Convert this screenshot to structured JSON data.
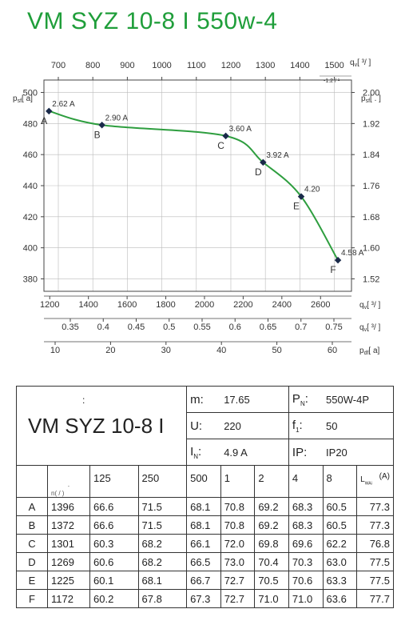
{
  "title": "VM SYZ 10-8 I 550w-4",
  "chart_data": {
    "type": "line",
    "curve_color": "#2e9e3f",
    "grid": true,
    "top_axis": {
      "label": "q",
      "sub": "v",
      "unit": "[ ³/ ]",
      "note": "-1.2 / ¹",
      "ticks": [
        700,
        800,
        900,
        1000,
        1100,
        1200,
        1300,
        1400,
        1500
      ]
    },
    "left_axis": {
      "label": "p",
      "sub": "sf",
      "unit": "[ a]",
      "ticks": [
        500,
        480,
        460,
        440,
        420,
        400,
        380
      ],
      "ylim": [
        372,
        508
      ]
    },
    "right_axis": {
      "label": "p",
      "sub": "sf",
      "unit": "[ . ]",
      "ticks": [
        "2.00",
        "1.92",
        "1.84",
        "1.76",
        "1.68",
        "1.60",
        "1.52"
      ]
    },
    "bottom_axes": [
      {
        "label": "q",
        "sub": "v",
        "unit": "[ ³/ ]",
        "ticks": [
          1200,
          1400,
          1600,
          1800,
          2000,
          2200,
          2400,
          2600
        ]
      },
      {
        "label": "q",
        "sub": "v",
        "unit": "[ ³/ ]",
        "ticks": [
          "0.35",
          "0.4",
          "0.45",
          "0.5",
          "0.55",
          "0.6",
          "0.65",
          "0.7",
          "0.75"
        ]
      },
      {
        "label": "p",
        "sub": "df",
        "unit": "[ a]",
        "ticks": [
          10,
          20,
          30,
          40,
          50,
          60
        ]
      }
    ],
    "points": [
      {
        "label": "A",
        "current": "2.62 A",
        "x": 1196,
        "y": 488
      },
      {
        "label": "B",
        "current": "2.90 A",
        "x": 1470,
        "y": 479
      },
      {
        "label": "C",
        "current": "3.60 A",
        "x": 2110,
        "y": 472
      },
      {
        "label": "D",
        "current": "3.92 A",
        "x": 2303,
        "y": 455
      },
      {
        "label": "E",
        "current": "4.20",
        "x": 2500,
        "y": 433
      },
      {
        "label": "F",
        "current": "4.58 A",
        "x": 2690,
        "y": 392
      }
    ],
    "xlim": [
      1170,
      2760
    ]
  },
  "specs": {
    "model_prefix": ":",
    "model": "VM SYZ 10-8 I",
    "m_label": "m:",
    "m_value": "17.65",
    "pn_label": "P",
    "pn_sub": "N",
    "pn_colon": ":",
    "pn_value": "550W-4P",
    "u_label": "U:",
    "u_value": "220",
    "f_label": "f",
    "f_sub": "1",
    "f_colon": ":",
    "f_value": "50",
    "in_label": "I",
    "in_sub": "N",
    "in_colon": ":",
    "in_value": "4.9  A",
    "ip_label": "IP:",
    "ip_value": "IP20"
  },
  "table": {
    "n_header": "n( / )",
    "n_header_dot": "·",
    "freq_headers": [
      "125",
      "250",
      "500",
      "1",
      "2",
      "4",
      "8"
    ],
    "lw_header": "L",
    "lw_sub": "WAi",
    "lw_unit": "(A)",
    "rows": [
      {
        "label": "A",
        "values": [
          "1396",
          "66.6",
          "71.5",
          "68.1",
          "70.8",
          "69.2",
          "68.3",
          "60.5",
          "77.3"
        ]
      },
      {
        "label": "B",
        "values": [
          "1372",
          "66.6",
          "71.5",
          "68.1",
          "70.8",
          "69.2",
          "68.3",
          "60.5",
          "77.3"
        ]
      },
      {
        "label": "C",
        "values": [
          "1301",
          "60.3",
          "68.2",
          "66.1",
          "72.0",
          "69.8",
          "69.6",
          "62.2",
          "76.8"
        ]
      },
      {
        "label": "D",
        "values": [
          "1269",
          "60.6",
          "68.2",
          "66.5",
          "73.0",
          "70.4",
          "70.3",
          "63.0",
          "77.5"
        ]
      },
      {
        "label": "E",
        "values": [
          "1225",
          "60.1",
          "68.1",
          "66.7",
          "72.7",
          "70.5",
          "70.6",
          "63.3",
          "77.5"
        ]
      },
      {
        "label": "F",
        "values": [
          "1172",
          "60.2",
          "67.8",
          "67.3",
          "72.7",
          "71.0",
          "71.0",
          "63.6",
          "77.7"
        ]
      }
    ]
  }
}
